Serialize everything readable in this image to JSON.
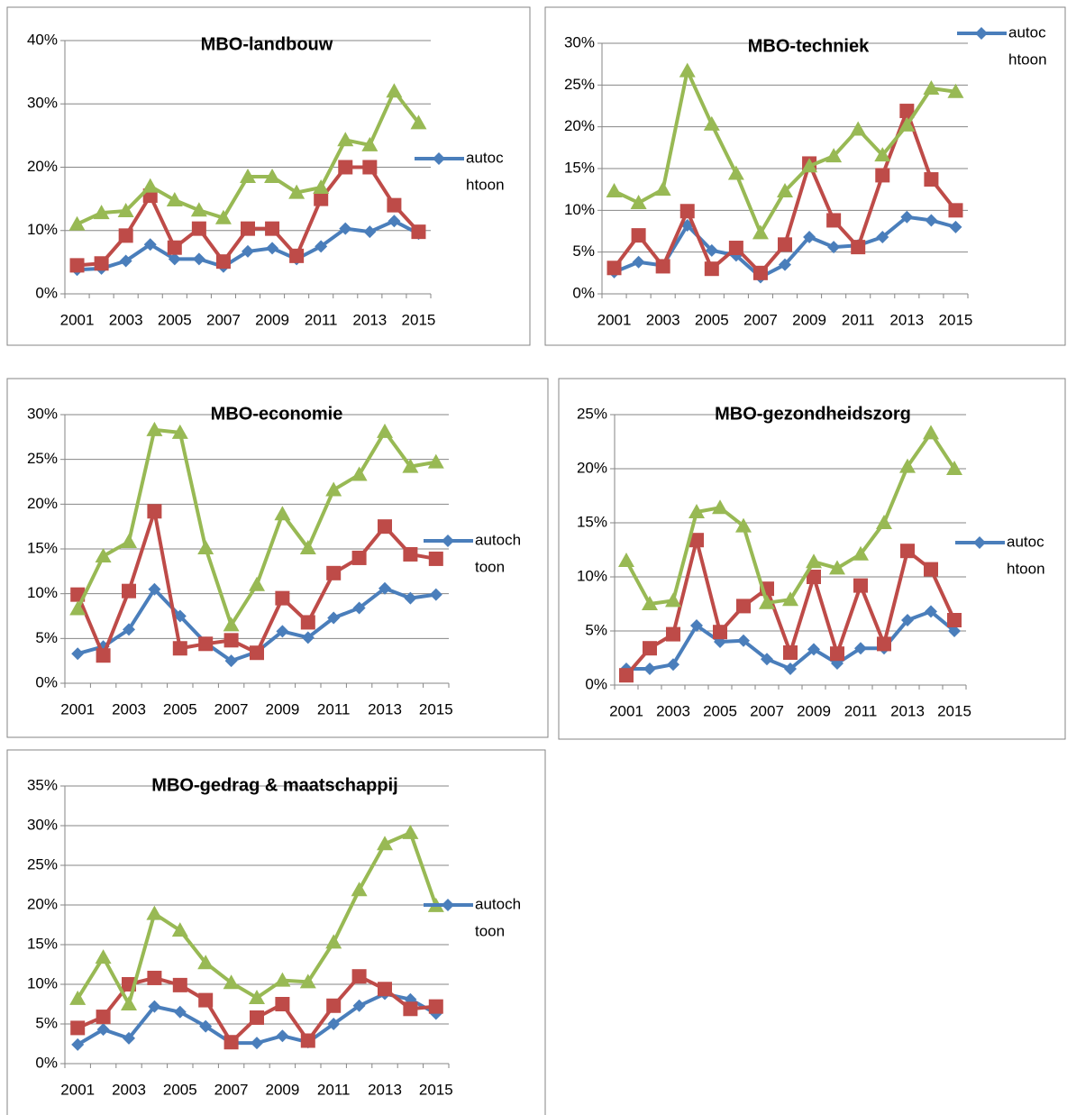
{
  "chart_data": [
    {
      "type": "line",
      "title": "MBO-landbouw",
      "categories": [
        2001,
        null,
        2003,
        null,
        2005,
        null,
        2007,
        null,
        2009,
        null,
        2011,
        null,
        2013,
        null,
        2015
      ],
      "ylim": [
        0,
        40
      ],
      "yticks": [
        {
          "value": 0,
          "label": "0%"
        },
        {
          "value": 10,
          "label": "10%"
        },
        {
          "value": 20,
          "label": "20%"
        },
        {
          "value": 30,
          "label": "30%"
        },
        {
          "value": 40,
          "label": "40%"
        }
      ],
      "grid": true,
      "legend": "right",
      "series": [
        {
          "name": [
            "autoc",
            "htoon"
          ],
          "color": "#4a7ebb",
          "marker": "diamond",
          "values": [
            3.8,
            4,
            5.2,
            7.8,
            5.5,
            5.5,
            4.3,
            6.7,
            7.2,
            5.5,
            7.5,
            10.3,
            9.8,
            11.5,
            9.5
          ]
        },
        {
          "color": "#be4b48",
          "marker": "square",
          "values": [
            4.5,
            4.8,
            9.2,
            15.5,
            7.3,
            10.3,
            5.1,
            10.3,
            10.3,
            6,
            15,
            20,
            20,
            14,
            9.8
          ]
        },
        {
          "color": "#98b954",
          "marker": "triangle",
          "values": [
            11,
            12.8,
            13.1,
            17,
            14.8,
            13.2,
            12,
            18.5,
            18.5,
            16,
            16.8,
            24.3,
            23.5,
            32,
            27
          ]
        }
      ]
    },
    {
      "type": "line",
      "title": "MBO-techniek",
      "categories": [
        2001,
        null,
        2003,
        null,
        2005,
        null,
        2007,
        null,
        2009,
        null,
        2011,
        null,
        2013,
        null,
        2015
      ],
      "ylim": [
        0,
        30
      ],
      "yticks": [
        {
          "value": 0,
          "label": "0%"
        },
        {
          "value": 5,
          "label": "5%"
        },
        {
          "value": 10,
          "label": "10%"
        },
        {
          "value": 15,
          "label": "15%"
        },
        {
          "value": 20,
          "label": "20%"
        },
        {
          "value": 25,
          "label": "25%"
        },
        {
          "value": 30,
          "label": "30%"
        }
      ],
      "grid": true,
      "legend": "top-right",
      "series": [
        {
          "name": [
            "autoc",
            "htoon"
          ],
          "color": "#4a7ebb",
          "marker": "diamond",
          "values": [
            2.6,
            3.8,
            3.4,
            8.2,
            5.2,
            4.6,
            2,
            3.5,
            6.8,
            5.6,
            5.8,
            6.8,
            9.2,
            8.8,
            8
          ]
        },
        {
          "color": "#be4b48",
          "marker": "square",
          "values": [
            3.1,
            7,
            3.3,
            9.9,
            3,
            5.5,
            2.5,
            5.9,
            15.6,
            8.8,
            5.6,
            14.2,
            21.9,
            13.7,
            10
          ]
        },
        {
          "color": "#98b954",
          "marker": "triangle",
          "values": [
            12.3,
            10.9,
            12.5,
            26.7,
            20.3,
            14.4,
            7.3,
            12.3,
            15.3,
            16.5,
            19.7,
            16.6,
            20.2,
            24.6,
            24.2
          ]
        }
      ]
    },
    {
      "type": "line",
      "title": "MBO-economie",
      "categories": [
        2001,
        null,
        2003,
        null,
        2005,
        null,
        2007,
        null,
        2009,
        null,
        2011,
        null,
        2013,
        null,
        2015
      ],
      "ylim": [
        0,
        30
      ],
      "yticks": [
        {
          "value": 0,
          "label": "0%"
        },
        {
          "value": 5,
          "label": "5%"
        },
        {
          "value": 10,
          "label": "10%"
        },
        {
          "value": 15,
          "label": "15%"
        },
        {
          "value": 20,
          "label": "20%"
        },
        {
          "value": 25,
          "label": "25%"
        },
        {
          "value": 30,
          "label": "30%"
        }
      ],
      "grid": true,
      "legend": "right",
      "series": [
        {
          "name": [
            "autoch",
            "toon"
          ],
          "color": "#4a7ebb",
          "marker": "diamond",
          "values": [
            3.3,
            4.1,
            6,
            10.5,
            7.5,
            4.5,
            2.5,
            3.5,
            5.8,
            5.1,
            7.3,
            8.4,
            10.6,
            9.5,
            9.9
          ]
        },
        {
          "color": "#be4b48",
          "marker": "square",
          "values": [
            9.9,
            3.1,
            10.3,
            19.2,
            3.9,
            4.4,
            4.8,
            3.4,
            9.5,
            6.8,
            12.3,
            14,
            17.5,
            14.4,
            13.9
          ]
        },
        {
          "color": "#98b954",
          "marker": "triangle",
          "values": [
            8.3,
            14.2,
            15.8,
            28.3,
            28,
            15.1,
            6.5,
            11,
            18.9,
            15.1,
            21.6,
            23.3,
            28.1,
            24.2,
            24.7
          ]
        }
      ]
    },
    {
      "type": "line",
      "title": "MBO-gezondheidszorg",
      "categories": [
        2001,
        null,
        2003,
        null,
        2005,
        null,
        2007,
        null,
        2009,
        null,
        2011,
        null,
        2013,
        null,
        2015
      ],
      "ylim": [
        0,
        25
      ],
      "yticks": [
        {
          "value": 0,
          "label": "0%"
        },
        {
          "value": 5,
          "label": "5%"
        },
        {
          "value": 10,
          "label": "10%"
        },
        {
          "value": 15,
          "label": "15%"
        },
        {
          "value": 20,
          "label": "20%"
        },
        {
          "value": 25,
          "label": "25%"
        }
      ],
      "grid": true,
      "legend": "right",
      "series": [
        {
          "name": [
            "autoc",
            "htoon"
          ],
          "color": "#4a7ebb",
          "marker": "diamond",
          "values": [
            1.5,
            1.5,
            1.9,
            5.5,
            4,
            4.1,
            2.4,
            1.5,
            3.3,
            2,
            3.4,
            3.4,
            6,
            6.8,
            5
          ]
        },
        {
          "color": "#be4b48",
          "marker": "square",
          "values": [
            0.9,
            3.4,
            4.7,
            13.4,
            4.9,
            7.3,
            8.9,
            3,
            10,
            2.9,
            9.2,
            3.8,
            12.4,
            10.7,
            6
          ]
        },
        {
          "color": "#98b954",
          "marker": "triangle",
          "values": [
            11.5,
            7.5,
            7.8,
            16,
            16.4,
            14.7,
            7.6,
            7.9,
            11.4,
            10.8,
            12.1,
            15,
            20.2,
            23.3,
            20
          ]
        }
      ]
    },
    {
      "type": "line",
      "title": "MBO-gedrag & maatschappij",
      "categories": [
        2001,
        null,
        2003,
        null,
        2005,
        null,
        2007,
        null,
        2009,
        null,
        2011,
        null,
        2013,
        null,
        2015
      ],
      "ylim": [
        0,
        35
      ],
      "yticks": [
        {
          "value": 0,
          "label": "0%"
        },
        {
          "value": 5,
          "label": "5%"
        },
        {
          "value": 10,
          "label": "10%"
        },
        {
          "value": 15,
          "label": "15%"
        },
        {
          "value": 20,
          "label": "20%"
        },
        {
          "value": 25,
          "label": "25%"
        },
        {
          "value": 30,
          "label": "30%"
        },
        {
          "value": 35,
          "label": "35%"
        }
      ],
      "grid": true,
      "legend": "right",
      "series": [
        {
          "name": [
            "autoch",
            "toon"
          ],
          "color": "#4a7ebb",
          "marker": "diamond",
          "values": [
            2.4,
            4.3,
            3.2,
            7.2,
            6.5,
            4.7,
            2.6,
            2.6,
            3.5,
            2.7,
            5,
            7.3,
            8.8,
            8.1,
            6.3
          ]
        },
        {
          "color": "#be4b48",
          "marker": "square",
          "values": [
            4.5,
            5.9,
            10,
            10.8,
            9.9,
            8,
            2.7,
            5.8,
            7.5,
            2.9,
            7.3,
            11,
            9.4,
            6.9,
            7.2
          ]
        },
        {
          "color": "#98b954",
          "marker": "triangle",
          "values": [
            8.2,
            13.4,
            7.5,
            18.9,
            16.8,
            12.7,
            10.2,
            8.3,
            10.5,
            10.3,
            15.3,
            21.9,
            27.7,
            29.1,
            19.9
          ]
        }
      ]
    }
  ]
}
